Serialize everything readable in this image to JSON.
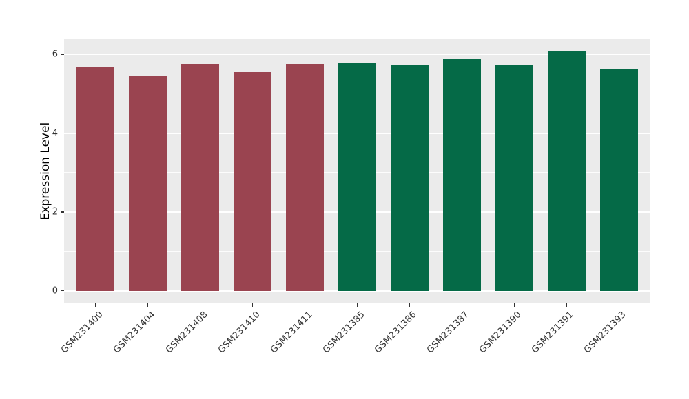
{
  "chart_data": {
    "type": "bar",
    "title": "",
    "ylabel": "Expression Level",
    "xlabel": "",
    "categories": [
      "GSM231400",
      "GSM231404",
      "GSM231408",
      "GSM231410",
      "GSM231411",
      "GSM231385",
      "GSM231386",
      "GSM231387",
      "GSM231390",
      "GSM231391",
      "GSM231393"
    ],
    "values": [
      5.69,
      5.46,
      5.75,
      5.55,
      5.75,
      5.79,
      5.74,
      5.88,
      5.74,
      6.09,
      5.62
    ],
    "bar_colors": [
      "#9A4450",
      "#9A4450",
      "#9A4450",
      "#9A4450",
      "#9A4450",
      "#056A47",
      "#056A47",
      "#056A47",
      "#056A47",
      "#056A47",
      "#056A47"
    ],
    "yticks": [
      0,
      2,
      4,
      6
    ],
    "minor_yticks": [
      1,
      3,
      5
    ],
    "ylim": [
      -0.31,
      6.38
    ],
    "grid": true,
    "legend_position": "none",
    "panel_bg": "#EBEBEB",
    "grid_color": "#FFFFFF",
    "tick_label_color": "#333333",
    "axis_title_color": "#000000"
  }
}
